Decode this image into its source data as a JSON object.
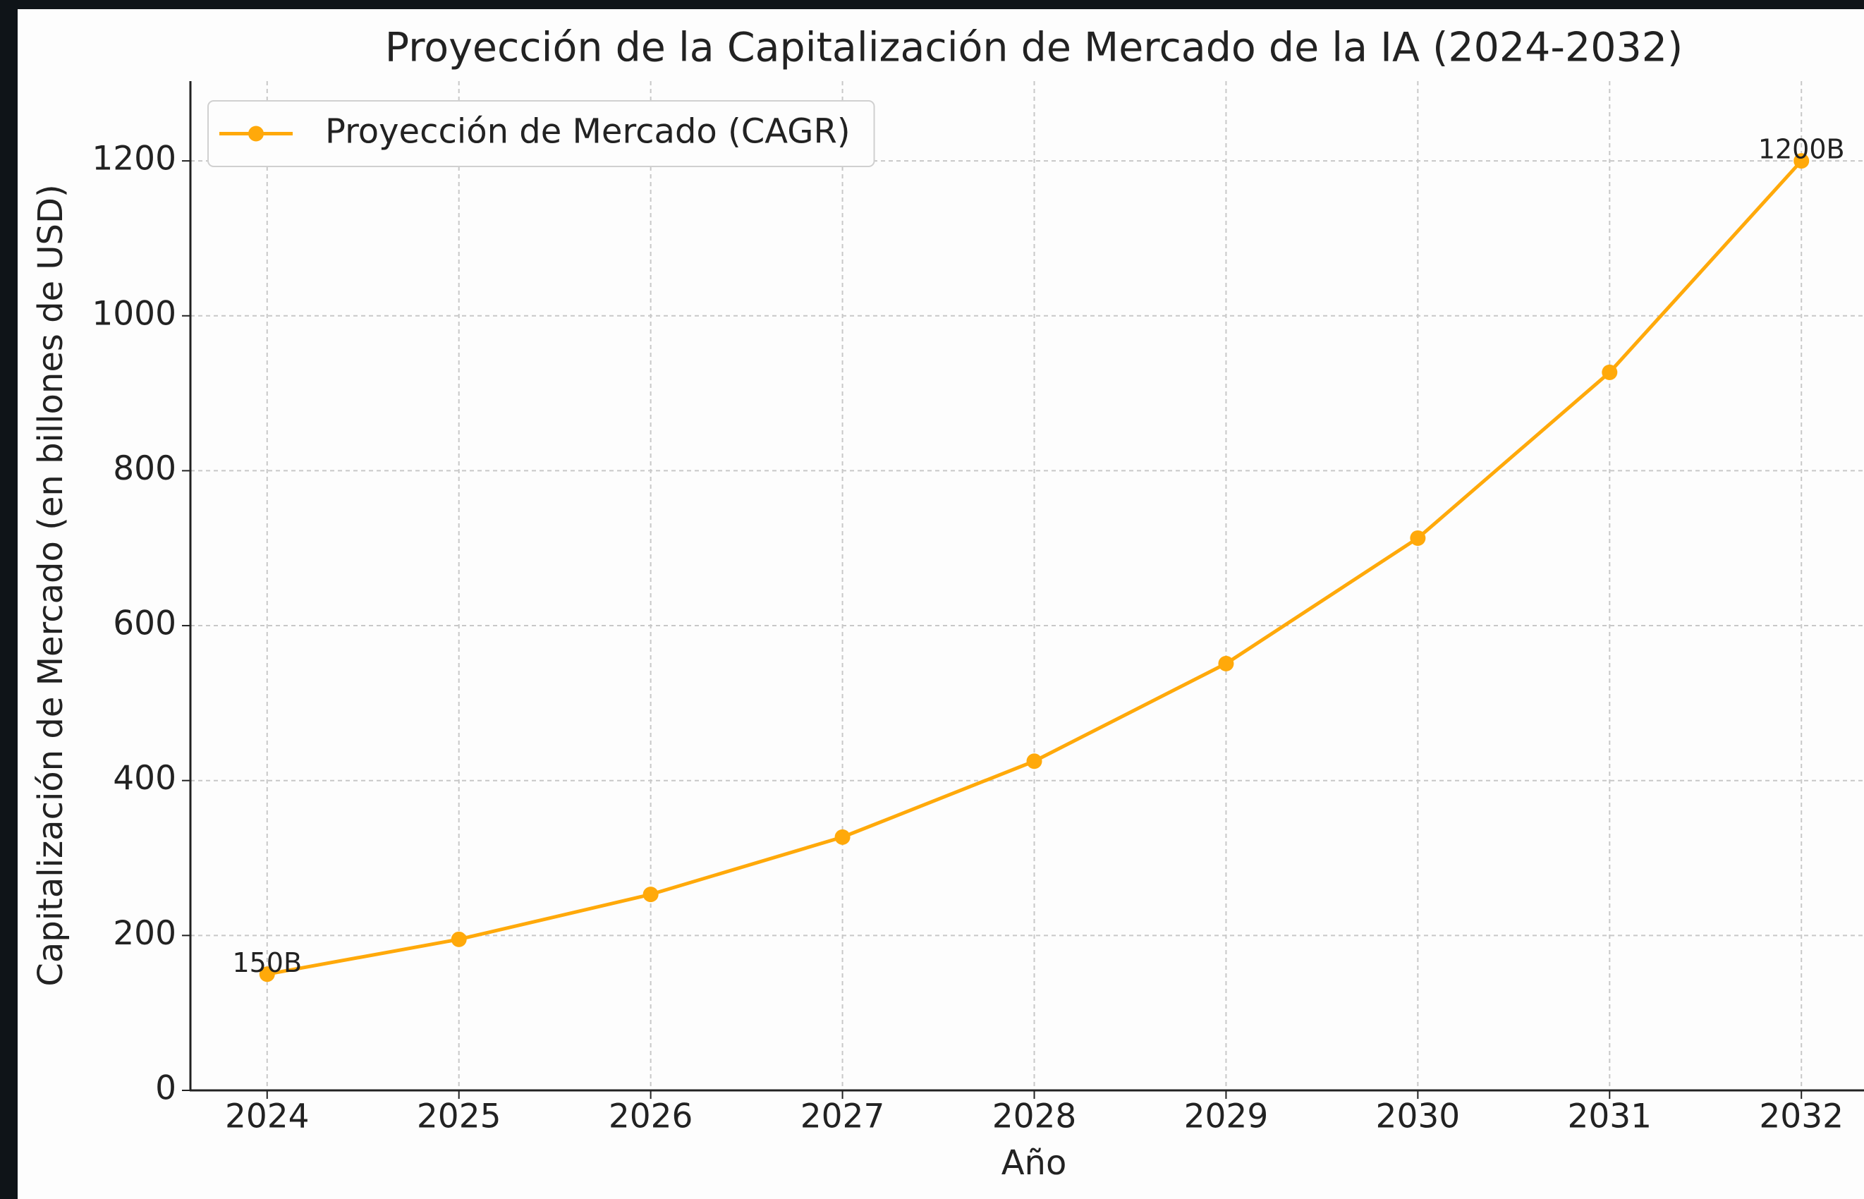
{
  "chart_data": {
    "type": "line",
    "title": "Proyección de la Capitalización de Mercado de la IA (2024-2032)",
    "x_label": "Año",
    "y_label": "Capitalización de Mercado (en billones de USD)",
    "x": [
      2024,
      2025,
      2026,
      2027,
      2028,
      2029,
      2030,
      2031,
      2032
    ],
    "series": [
      {
        "name": "Proyección de Mercado (CAGR)",
        "color": "#ffa90a",
        "values": [
          150,
          195,
          253,
          327,
          425,
          551,
          713,
          927,
          1200
        ],
        "value_labels": [
          "150B",
          null,
          null,
          null,
          null,
          null,
          null,
          null,
          "1200B"
        ]
      }
    ],
    "xlim": [
      2023.6,
      2032.4
    ],
    "xticks": [
      2024,
      2025,
      2026,
      2027,
      2028,
      2029,
      2030,
      2031,
      2032
    ],
    "ylim": [
      0,
      1303
    ],
    "yticks": [
      0,
      200,
      400,
      600,
      800,
      1000,
      1200
    ],
    "grid": true,
    "legend": "upper left"
  }
}
